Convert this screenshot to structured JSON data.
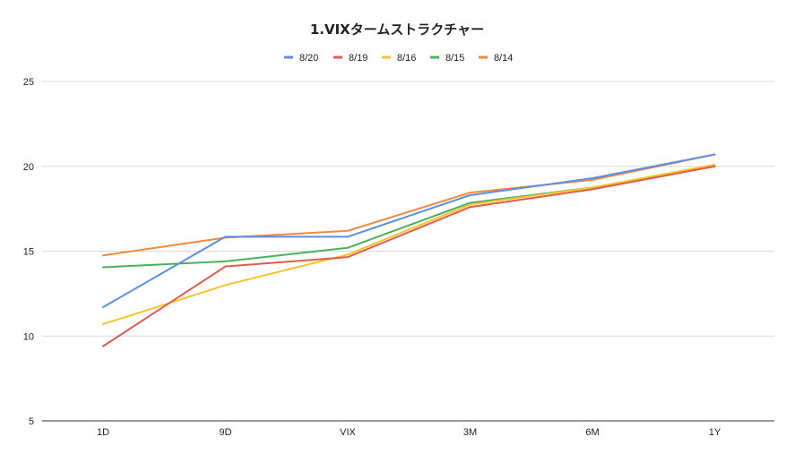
{
  "chart_data": {
    "type": "line",
    "title": "1.VIXタームストラクチャー",
    "xlabel": "",
    "ylabel": "",
    "categories": [
      "1D",
      "9D",
      "VIX",
      "3M",
      "6M",
      "1Y"
    ],
    "ylim": [
      5,
      25
    ],
    "yticks": [
      "5",
      "10",
      "15",
      "20",
      "25"
    ],
    "grid": true,
    "legend_position": "top",
    "series": [
      {
        "name": "8/20",
        "color": "#5b8ee6",
        "values": [
          11.7,
          15.85,
          15.85,
          18.3,
          19.3,
          20.7
        ]
      },
      {
        "name": "8/19",
        "color": "#e15b48",
        "values": [
          9.4,
          14.1,
          14.65,
          17.6,
          18.65,
          20.0
        ]
      },
      {
        "name": "8/16",
        "color": "#f4c430",
        "values": [
          10.7,
          13.0,
          14.8,
          17.75,
          18.75,
          20.1
        ]
      },
      {
        "name": "8/15",
        "color": "#4caf5a",
        "values": [
          14.05,
          14.4,
          15.2,
          17.85,
          18.75,
          20.0
        ]
      },
      {
        "name": "8/14",
        "color": "#f08a3c",
        "values": [
          14.75,
          15.8,
          16.2,
          18.45,
          19.2,
          20.7
        ]
      }
    ]
  }
}
